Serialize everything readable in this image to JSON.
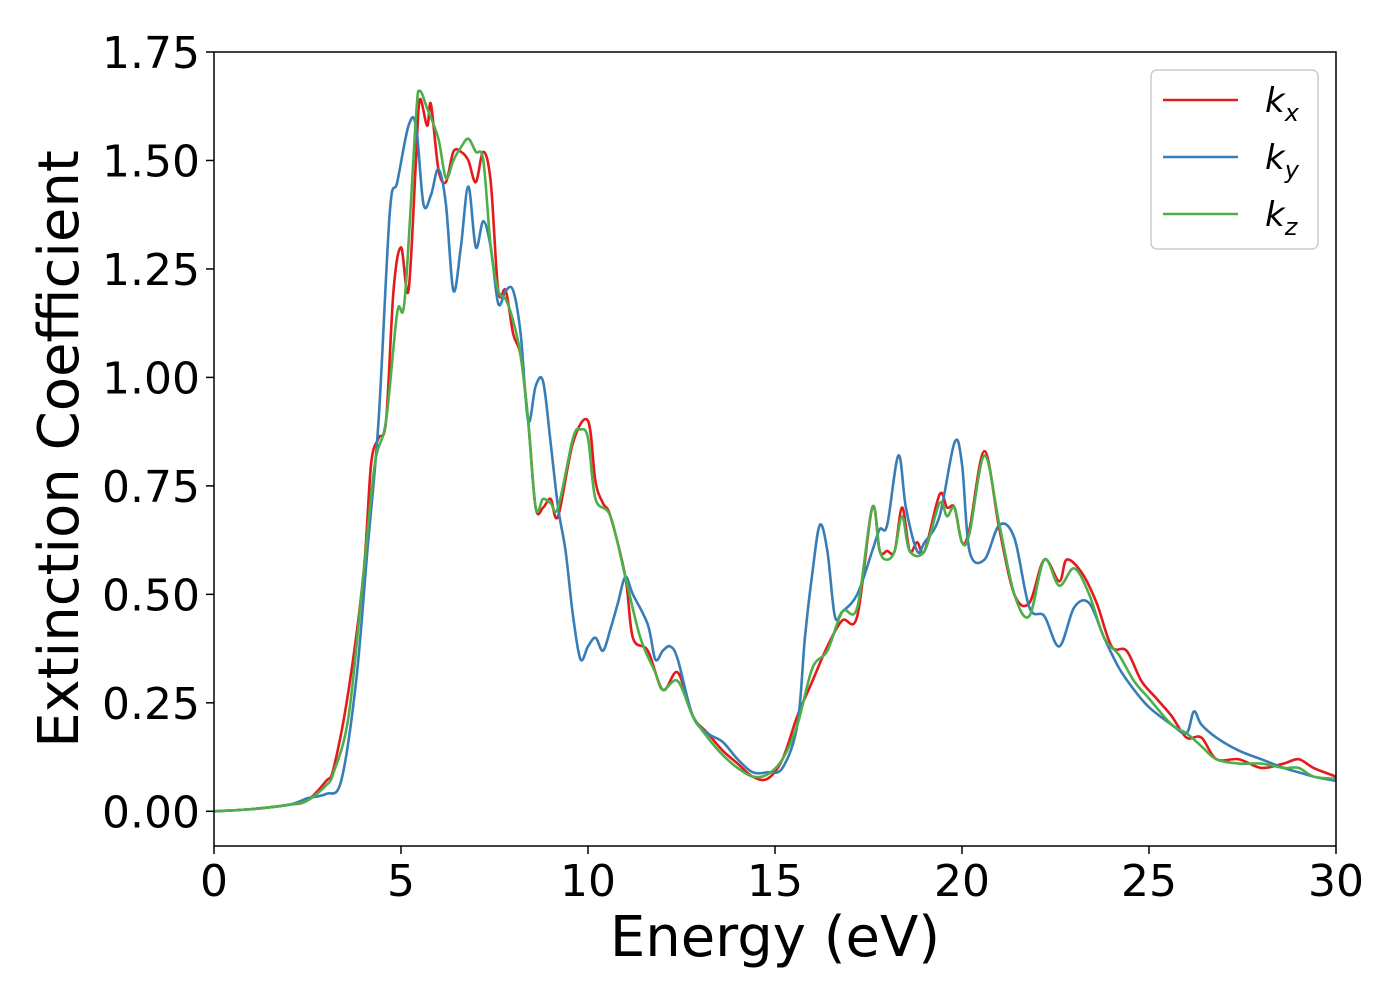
{
  "chart_data": {
    "type": "line",
    "title": "",
    "xlabel": "Energy (eV)",
    "ylabel": "Extinction Coefficient",
    "xlim": [
      0,
      30
    ],
    "ylim": [
      -0.08,
      1.75
    ],
    "xticks": [
      0,
      5,
      10,
      15,
      20,
      25,
      30
    ],
    "xtick_labels": [
      "0",
      "5",
      "10",
      "15",
      "20",
      "25",
      "30"
    ],
    "yticks": [
      0,
      0.25,
      0.5,
      0.75,
      1.0,
      1.25,
      1.5,
      1.75
    ],
    "ytick_labels": [
      "0.00",
      "0.25",
      "0.50",
      "0.75",
      "1.00",
      "1.25",
      "1.50",
      "1.75"
    ],
    "grid": false,
    "legend_position": "top-right",
    "series": [
      {
        "name": "k_x",
        "label_base": "k",
        "label_sub": "x",
        "color": "#e41a1c",
        "points": [
          [
            0,
            0.0
          ],
          [
            1,
            0.005
          ],
          [
            2,
            0.015
          ],
          [
            2.5,
            0.025
          ],
          [
            3,
            0.07
          ],
          [
            3.2,
            0.1
          ],
          [
            3.6,
            0.28
          ],
          [
            4.0,
            0.55
          ],
          [
            4.2,
            0.8
          ],
          [
            4.4,
            0.86
          ],
          [
            4.6,
            0.9
          ],
          [
            4.8,
            1.2
          ],
          [
            5.0,
            1.3
          ],
          [
            5.2,
            1.2
          ],
          [
            5.4,
            1.5
          ],
          [
            5.5,
            1.64
          ],
          [
            5.7,
            1.58
          ],
          [
            5.8,
            1.63
          ],
          [
            6.0,
            1.48
          ],
          [
            6.2,
            1.45
          ],
          [
            6.4,
            1.52
          ],
          [
            6.6,
            1.52
          ],
          [
            6.8,
            1.5
          ],
          [
            7.0,
            1.45
          ],
          [
            7.2,
            1.52
          ],
          [
            7.4,
            1.45
          ],
          [
            7.6,
            1.2
          ],
          [
            7.8,
            1.2
          ],
          [
            8.0,
            1.1
          ],
          [
            8.2,
            1.05
          ],
          [
            8.4,
            0.9
          ],
          [
            8.6,
            0.7
          ],
          [
            8.8,
            0.7
          ],
          [
            9.0,
            0.72
          ],
          [
            9.2,
            0.68
          ],
          [
            9.6,
            0.85
          ],
          [
            10.0,
            0.9
          ],
          [
            10.2,
            0.76
          ],
          [
            10.4,
            0.71
          ],
          [
            10.6,
            0.68
          ],
          [
            11.0,
            0.54
          ],
          [
            11.2,
            0.4
          ],
          [
            11.6,
            0.37
          ],
          [
            12.0,
            0.28
          ],
          [
            12.4,
            0.32
          ],
          [
            12.8,
            0.22
          ],
          [
            13.2,
            0.18
          ],
          [
            13.6,
            0.14
          ],
          [
            14.0,
            0.11
          ],
          [
            14.4,
            0.08
          ],
          [
            14.8,
            0.075
          ],
          [
            15.2,
            0.12
          ],
          [
            15.6,
            0.22
          ],
          [
            16.0,
            0.3
          ],
          [
            16.4,
            0.38
          ],
          [
            16.8,
            0.44
          ],
          [
            17.2,
            0.45
          ],
          [
            17.6,
            0.7
          ],
          [
            17.8,
            0.6
          ],
          [
            18.0,
            0.6
          ],
          [
            18.2,
            0.6
          ],
          [
            18.4,
            0.7
          ],
          [
            18.6,
            0.6
          ],
          [
            18.8,
            0.62
          ],
          [
            19.0,
            0.6
          ],
          [
            19.4,
            0.73
          ],
          [
            19.6,
            0.7
          ],
          [
            19.8,
            0.7
          ],
          [
            20.0,
            0.62
          ],
          [
            20.2,
            0.65
          ],
          [
            20.6,
            0.83
          ],
          [
            21.0,
            0.65
          ],
          [
            21.4,
            0.5
          ],
          [
            21.8,
            0.48
          ],
          [
            22.2,
            0.58
          ],
          [
            22.6,
            0.53
          ],
          [
            22.8,
            0.58
          ],
          [
            23.2,
            0.55
          ],
          [
            23.6,
            0.48
          ],
          [
            24.0,
            0.38
          ],
          [
            24.4,
            0.37
          ],
          [
            24.8,
            0.3
          ],
          [
            25.2,
            0.26
          ],
          [
            25.6,
            0.22
          ],
          [
            26.0,
            0.17
          ],
          [
            26.4,
            0.17
          ],
          [
            26.8,
            0.12
          ],
          [
            27.4,
            0.12
          ],
          [
            28.0,
            0.1
          ],
          [
            28.6,
            0.11
          ],
          [
            29.0,
            0.12
          ],
          [
            29.4,
            0.1
          ],
          [
            30,
            0.08
          ]
        ]
      },
      {
        "name": "k_y",
        "label_base": "k",
        "label_sub": "y",
        "color": "#377eb8",
        "points": [
          [
            0,
            0.0
          ],
          [
            1,
            0.005
          ],
          [
            2,
            0.015
          ],
          [
            2.5,
            0.03
          ],
          [
            3,
            0.04
          ],
          [
            3.4,
            0.07
          ],
          [
            3.8,
            0.3
          ],
          [
            4.1,
            0.6
          ],
          [
            4.4,
            0.9
          ],
          [
            4.7,
            1.38
          ],
          [
            4.9,
            1.45
          ],
          [
            5.2,
            1.58
          ],
          [
            5.4,
            1.58
          ],
          [
            5.6,
            1.4
          ],
          [
            5.8,
            1.42
          ],
          [
            6.0,
            1.48
          ],
          [
            6.2,
            1.4
          ],
          [
            6.4,
            1.2
          ],
          [
            6.6,
            1.3
          ],
          [
            6.8,
            1.44
          ],
          [
            7.0,
            1.3
          ],
          [
            7.2,
            1.36
          ],
          [
            7.4,
            1.3
          ],
          [
            7.6,
            1.17
          ],
          [
            7.8,
            1.2
          ],
          [
            8.0,
            1.2
          ],
          [
            8.2,
            1.1
          ],
          [
            8.4,
            0.9
          ],
          [
            8.6,
            0.98
          ],
          [
            8.8,
            0.99
          ],
          [
            9.0,
            0.85
          ],
          [
            9.2,
            0.7
          ],
          [
            9.4,
            0.6
          ],
          [
            9.6,
            0.45
          ],
          [
            9.8,
            0.35
          ],
          [
            10.0,
            0.38
          ],
          [
            10.2,
            0.4
          ],
          [
            10.4,
            0.37
          ],
          [
            10.6,
            0.42
          ],
          [
            10.8,
            0.48
          ],
          [
            11.0,
            0.54
          ],
          [
            11.2,
            0.5
          ],
          [
            11.6,
            0.43
          ],
          [
            11.8,
            0.35
          ],
          [
            12.0,
            0.37
          ],
          [
            12.2,
            0.38
          ],
          [
            12.4,
            0.35
          ],
          [
            12.8,
            0.22
          ],
          [
            13.2,
            0.18
          ],
          [
            13.6,
            0.16
          ],
          [
            14.0,
            0.12
          ],
          [
            14.4,
            0.09
          ],
          [
            14.8,
            0.09
          ],
          [
            15.2,
            0.1
          ],
          [
            15.6,
            0.2
          ],
          [
            15.8,
            0.4
          ],
          [
            16.0,
            0.55
          ],
          [
            16.2,
            0.66
          ],
          [
            16.4,
            0.6
          ],
          [
            16.6,
            0.45
          ],
          [
            16.8,
            0.46
          ],
          [
            17.2,
            0.5
          ],
          [
            17.6,
            0.6
          ],
          [
            17.8,
            0.65
          ],
          [
            18.0,
            0.66
          ],
          [
            18.3,
            0.82
          ],
          [
            18.5,
            0.7
          ],
          [
            18.8,
            0.6
          ],
          [
            19.0,
            0.62
          ],
          [
            19.4,
            0.68
          ],
          [
            19.8,
            0.85
          ],
          [
            20.0,
            0.8
          ],
          [
            20.2,
            0.6
          ],
          [
            20.6,
            0.58
          ],
          [
            21.0,
            0.66
          ],
          [
            21.4,
            0.63
          ],
          [
            21.8,
            0.47
          ],
          [
            22.2,
            0.45
          ],
          [
            22.6,
            0.38
          ],
          [
            23.0,
            0.47
          ],
          [
            23.4,
            0.48
          ],
          [
            23.8,
            0.4
          ],
          [
            24.2,
            0.33
          ],
          [
            24.6,
            0.28
          ],
          [
            25.0,
            0.24
          ],
          [
            25.6,
            0.2
          ],
          [
            26.0,
            0.18
          ],
          [
            26.2,
            0.23
          ],
          [
            26.4,
            0.2
          ],
          [
            26.8,
            0.17
          ],
          [
            27.4,
            0.14
          ],
          [
            28.0,
            0.12
          ],
          [
            28.6,
            0.1
          ],
          [
            29.0,
            0.09
          ],
          [
            29.4,
            0.08
          ],
          [
            30,
            0.07
          ]
        ]
      },
      {
        "name": "k_z",
        "label_base": "k",
        "label_sub": "z",
        "color": "#4daf4a",
        "points": [
          [
            0,
            0.0
          ],
          [
            1,
            0.005
          ],
          [
            2,
            0.015
          ],
          [
            2.5,
            0.025
          ],
          [
            3,
            0.06
          ],
          [
            3.2,
            0.09
          ],
          [
            3.6,
            0.22
          ],
          [
            4.0,
            0.55
          ],
          [
            4.3,
            0.8
          ],
          [
            4.6,
            0.9
          ],
          [
            4.9,
            1.15
          ],
          [
            5.1,
            1.18
          ],
          [
            5.4,
            1.6
          ],
          [
            5.5,
            1.66
          ],
          [
            5.7,
            1.62
          ],
          [
            6.0,
            1.55
          ],
          [
            6.2,
            1.46
          ],
          [
            6.4,
            1.5
          ],
          [
            6.6,
            1.53
          ],
          [
            6.8,
            1.55
          ],
          [
            7.0,
            1.52
          ],
          [
            7.2,
            1.5
          ],
          [
            7.4,
            1.3
          ],
          [
            7.6,
            1.2
          ],
          [
            7.8,
            1.18
          ],
          [
            8.0,
            1.13
          ],
          [
            8.2,
            1.05
          ],
          [
            8.4,
            0.9
          ],
          [
            8.6,
            0.7
          ],
          [
            8.8,
            0.72
          ],
          [
            9.0,
            0.71
          ],
          [
            9.2,
            0.7
          ],
          [
            9.6,
            0.86
          ],
          [
            9.8,
            0.88
          ],
          [
            10.0,
            0.86
          ],
          [
            10.2,
            0.72
          ],
          [
            10.6,
            0.68
          ],
          [
            11.0,
            0.54
          ],
          [
            11.4,
            0.4
          ],
          [
            11.8,
            0.32
          ],
          [
            12.0,
            0.28
          ],
          [
            12.4,
            0.3
          ],
          [
            12.8,
            0.22
          ],
          [
            13.2,
            0.17
          ],
          [
            13.6,
            0.13
          ],
          [
            14.0,
            0.1
          ],
          [
            14.4,
            0.08
          ],
          [
            14.8,
            0.085
          ],
          [
            15.2,
            0.12
          ],
          [
            15.6,
            0.2
          ],
          [
            16.0,
            0.33
          ],
          [
            16.4,
            0.37
          ],
          [
            16.8,
            0.46
          ],
          [
            17.2,
            0.47
          ],
          [
            17.6,
            0.7
          ],
          [
            17.8,
            0.6
          ],
          [
            18.0,
            0.58
          ],
          [
            18.2,
            0.6
          ],
          [
            18.4,
            0.68
          ],
          [
            18.6,
            0.6
          ],
          [
            19.0,
            0.6
          ],
          [
            19.4,
            0.71
          ],
          [
            19.6,
            0.68
          ],
          [
            19.8,
            0.7
          ],
          [
            20.0,
            0.62
          ],
          [
            20.2,
            0.64
          ],
          [
            20.6,
            0.82
          ],
          [
            21.0,
            0.66
          ],
          [
            21.4,
            0.5
          ],
          [
            21.8,
            0.45
          ],
          [
            22.2,
            0.58
          ],
          [
            22.6,
            0.52
          ],
          [
            23.0,
            0.56
          ],
          [
            23.4,
            0.5
          ],
          [
            23.8,
            0.4
          ],
          [
            24.2,
            0.36
          ],
          [
            24.6,
            0.3
          ],
          [
            25.0,
            0.26
          ],
          [
            25.6,
            0.2
          ],
          [
            26.0,
            0.18
          ],
          [
            26.4,
            0.15
          ],
          [
            26.8,
            0.12
          ],
          [
            27.4,
            0.11
          ],
          [
            28.0,
            0.11
          ],
          [
            28.6,
            0.1
          ],
          [
            29.0,
            0.1
          ],
          [
            29.4,
            0.08
          ],
          [
            30,
            0.075
          ]
        ]
      }
    ]
  }
}
